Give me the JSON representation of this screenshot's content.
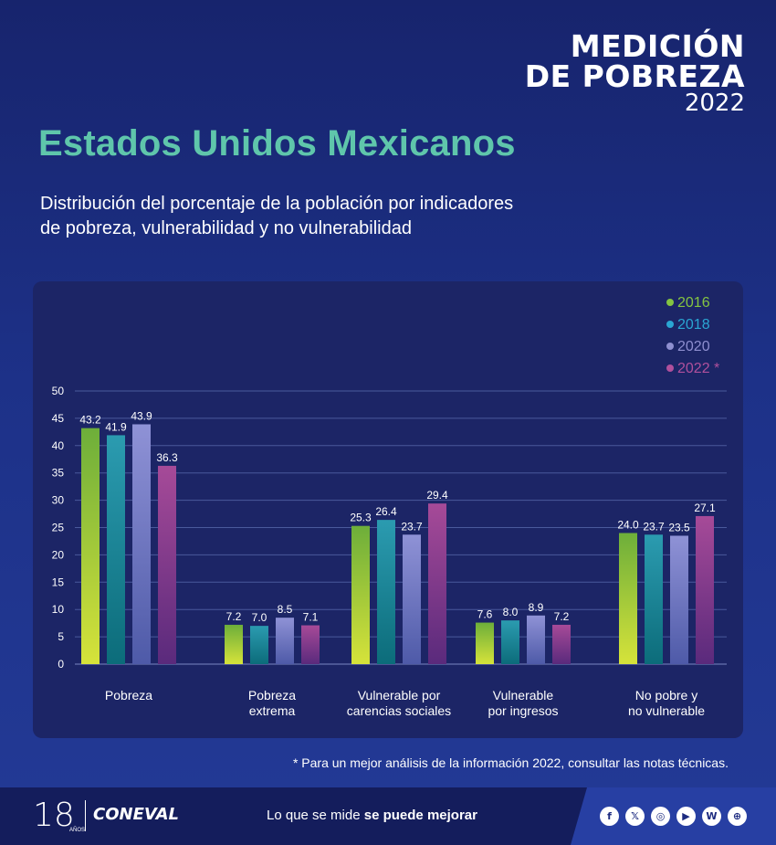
{
  "header": {
    "logo_line1": "MEDICIÓN",
    "logo_line2": "DE POBREZA",
    "logo_year": "2022",
    "title": "Estados Unidos Mexicanos",
    "subtitle_line1": "Distribución del porcentaje de la población por indicadores",
    "subtitle_line2": "de pobreza, vulnerabilidad y no vulnerabilidad"
  },
  "chart_data": {
    "type": "bar",
    "categories": [
      [
        "Pobreza"
      ],
      [
        "Pobreza",
        "extrema"
      ],
      [
        "Vulnerable por",
        "carencias sociales"
      ],
      [
        "Vulnerable",
        "por ingresos"
      ],
      [
        "No pobre y",
        "no vulnerable"
      ]
    ],
    "series": [
      {
        "name": "2016",
        "values": [
          43.2,
          7.2,
          25.3,
          7.6,
          24.0
        ],
        "labels": [
          "43.2",
          "7.2",
          "25.3",
          "7.6",
          "24.0"
        ]
      },
      {
        "name": "2018",
        "values": [
          41.9,
          7.0,
          26.4,
          8.0,
          23.7
        ],
        "labels": [
          "41.9",
          "7.0",
          "26.4",
          "8.0",
          "23.7"
        ]
      },
      {
        "name": "2020",
        "values": [
          43.9,
          8.5,
          23.7,
          8.9,
          23.5
        ],
        "labels": [
          "43.9",
          "8.5",
          "23.7",
          "8.9",
          "23.5"
        ]
      },
      {
        "name": "2022 *",
        "values": [
          36.3,
          7.1,
          29.4,
          7.2,
          27.1
        ],
        "labels": [
          "36.3",
          "7.1",
          "29.4",
          "7.2",
          "27.1"
        ]
      }
    ],
    "legend_colors": [
      "#84c441",
      "#2aa6d3",
      "#8e8fd0",
      "#b0509c"
    ],
    "series_gradients": [
      [
        "#6dae3a",
        "#d6e33a"
      ],
      [
        "#2b9bb0",
        "#0c6c7a"
      ],
      [
        "#8f92d6",
        "#4e5aa8"
      ],
      [
        "#a64a98",
        "#5a2a7c"
      ]
    ],
    "ylim": [
      0,
      50
    ],
    "yticks": [
      0,
      5,
      10,
      15,
      20,
      25,
      30,
      35,
      40,
      45,
      50
    ],
    "grid": true,
    "legend_position": "top-right"
  },
  "footnote": "* Para un mejor análisis de la información 2022, consultar las notas técnicas.",
  "footer": {
    "anniversary": "18",
    "anniversary_sub": "AÑOS",
    "brand": "CONEVAL",
    "tagline_regular": "Lo que se mide ",
    "tagline_bold": "se puede mejorar",
    "socials": [
      "facebook-icon",
      "x-icon",
      "instagram-icon",
      "youtube-icon",
      "blog-icon",
      "web-icon"
    ]
  }
}
